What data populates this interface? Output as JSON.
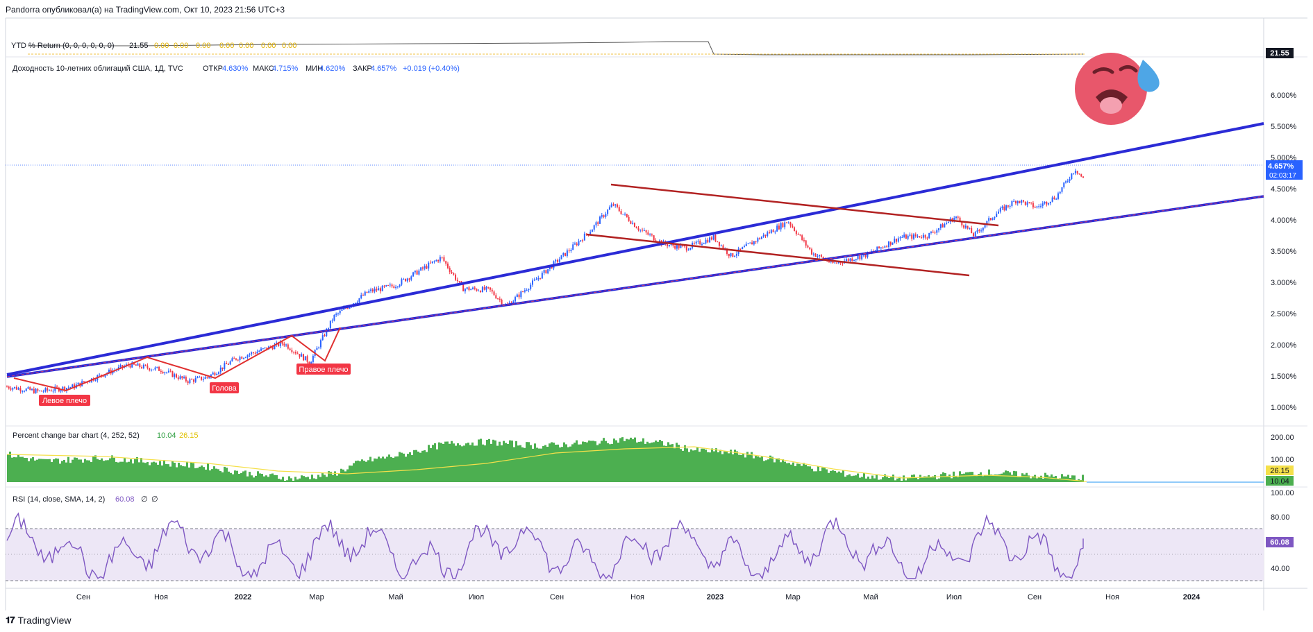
{
  "header": {
    "published": "Pandorra опубликовал(а) на TradingView.com, Окт 10, 2023 21:56 UTC+3"
  },
  "footer": {
    "brand": "TradingView"
  },
  "colors": {
    "up": "#2962ff",
    "down": "#f23645",
    "trendline": "#2b2bd6",
    "channel": "#b22222",
    "hs_line": "#e03030",
    "label_bg": "#f23645",
    "bar_fill": "#4caf50",
    "ma": "#f5e04a",
    "rsi": "#7e57c2",
    "rsi_band": "#ede7f6"
  },
  "ytd": {
    "title": "YTD % Return (0, 0, 0, 0, 0, 0)",
    "values": [
      "21.55",
      "0.00",
      "0.00",
      "0.00",
      "0.00",
      "0.00",
      "0.00",
      "0.00"
    ],
    "last": "21.55"
  },
  "main": {
    "legend": {
      "title": "Доходность 10-летних облигаций США, 1Д, TVC",
      "open_label": "ОТКР",
      "open": "4.630%",
      "high_label": "МАКС",
      "high": "4.715%",
      "low_label": "МИН",
      "low": "4.620%",
      "close_label": "ЗАКР",
      "close": "4.657%",
      "change": "+0.019 (+0.40%)"
    },
    "last_price": "4.657%",
    "countdown": "02:03:17",
    "y_ticks": [
      "1.000%",
      "1.500%",
      "2.000%",
      "2.500%",
      "3.000%",
      "3.500%",
      "4.000%",
      "4.500%",
      "5.000%",
      "5.500%",
      "6.000%"
    ],
    "labels": {
      "left_shoulder": "Левое плечо",
      "head": "Голова",
      "right_shoulder": "Правое плечо"
    },
    "emoji_icon": "hot-face-emoji"
  },
  "pcb": {
    "title": "Percent change bar chart (4, 252, 52)",
    "v1": "10.04",
    "v2": "26.15",
    "y_ticks": [
      "100.00",
      "200.00"
    ],
    "last_ma": "26.15",
    "last_bar": "10.04"
  },
  "rsi": {
    "title": "RSI (14, close, SMA, 14, 2)",
    "value": "60.08",
    "extra1": "∅",
    "extra2": "∅",
    "y_ticks": [
      "40.00",
      "80.00",
      "100.00"
    ],
    "last": "60.08"
  },
  "x_axis": {
    "ticks": [
      "Сен",
      "Ноя",
      "2022",
      "Мар",
      "Май",
      "Июл",
      "Сен",
      "Ноя",
      "2023",
      "Мар",
      "Май",
      "Июл",
      "Сен",
      "Ноя",
      "2024"
    ]
  },
  "chart_data": {
    "type": "candlestick",
    "symbol": "Доходность 10-летних облигаций США",
    "timeframe": "1Д",
    "ylim": [
      0.8,
      6.3
    ],
    "y_unit": "%",
    "x": [
      "2021-07-22",
      "2021-08-15",
      "2021-09-10",
      "2021-10-05",
      "2021-10-22",
      "2021-11-15",
      "2021-12-05",
      "2021-12-20",
      "2022-01-10",
      "2022-02-15",
      "2022-03-07",
      "2022-03-25",
      "2022-04-20",
      "2022-05-10",
      "2022-06-14",
      "2022-06-30",
      "2022-07-20",
      "2022-08-02",
      "2022-08-30",
      "2022-09-20",
      "2022-10-05",
      "2022-10-21",
      "2022-11-10",
      "2022-11-28",
      "2022-12-15",
      "2023-01-05",
      "2023-01-18",
      "2023-02-10",
      "2023-03-02",
      "2023-03-20",
      "2023-04-05",
      "2023-05-01",
      "2023-05-25",
      "2023-06-15",
      "2023-07-06",
      "2023-07-20",
      "2023-08-05",
      "2023-08-21",
      "2023-09-05",
      "2023-09-20",
      "2023-10-04",
      "2023-10-10"
    ],
    "close": [
      1.33,
      1.25,
      1.33,
      1.55,
      1.68,
      1.6,
      1.42,
      1.48,
      1.78,
      2.03,
      1.72,
      2.45,
      2.85,
      2.95,
      3.4,
      2.9,
      2.88,
      2.62,
      3.15,
      3.55,
      3.85,
      4.25,
      3.85,
      3.62,
      3.55,
      3.72,
      3.42,
      3.73,
      3.98,
      3.47,
      3.3,
      3.45,
      3.72,
      3.75,
      4.05,
      3.75,
      4.1,
      4.32,
      4.2,
      4.38,
      4.82,
      4.657
    ],
    "ohlc_last": {
      "open": 4.63,
      "high": 4.715,
      "low": 4.62,
      "close": 4.657
    },
    "trendlines": [
      {
        "name": "upper",
        "from": [
          "2021-07-22",
          1.22
        ],
        "to": [
          "2024-04-01",
          5.28
        ]
      }
    ],
    "channel": [
      {
        "from": [
          "2022-10-05",
          4.3
        ],
        "to": [
          "2023-07-20",
          3.7
        ]
      },
      {
        "from": [
          "2022-09-30",
          3.58
        ],
        "to": [
          "2023-07-10",
          2.95
        ]
      }
    ],
    "percent_change_bars": {
      "ylim": [
        0,
        220
      ],
      "last_bar": 10.04,
      "last_ma": 26.15
    },
    "rsi_series": {
      "ylim": [
        20,
        100
      ],
      "upper": 70,
      "lower": 30,
      "mid": 50,
      "last": 60.08
    }
  }
}
